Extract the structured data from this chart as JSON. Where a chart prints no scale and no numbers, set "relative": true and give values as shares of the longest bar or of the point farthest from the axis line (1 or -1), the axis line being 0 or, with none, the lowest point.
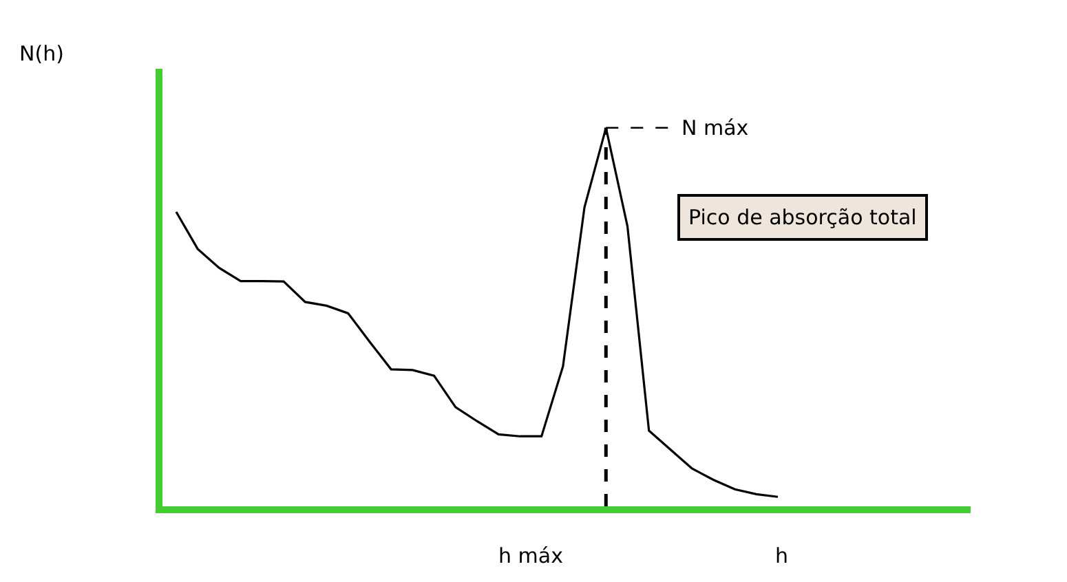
{
  "chart_data": {
    "type": "line",
    "relative": true,
    "xlabel": "h",
    "categories": [
      null,
      null,
      null,
      null,
      null,
      null,
      null,
      null,
      null,
      null,
      null,
      null,
      null,
      null,
      null,
      null,
      null,
      null,
      null,
      null,
      null,
      null,
      null,
      null,
      null,
      null,
      null,
      null,
      null
    ],
    "series": [
      {
        "color": "#000000",
        "values": [
          0.778,
          0.68,
          0.63,
          0.595,
          0.595,
          0.594,
          0.54,
          0.53,
          0.51,
          0.435,
          0.362,
          0.36,
          0.345,
          0.262,
          0.225,
          0.19,
          0.185,
          0.185,
          0.37,
          0.79,
          1.0,
          0.74,
          0.2,
          0.15,
          0.1,
          0.07,
          0.045,
          0.032,
          0.025
        ]
      }
    ],
    "ref_lines": [
      {
        "axis": "y",
        "value": 1.0,
        "label": "N máx",
        "line_style": "dashed",
        "color": "#000000"
      }
    ],
    "annotations": [
      "h máx",
      "Pico de absorção total",
      "N(h)"
    ],
    "marker": "none",
    "line_style": "solid"
  }
}
